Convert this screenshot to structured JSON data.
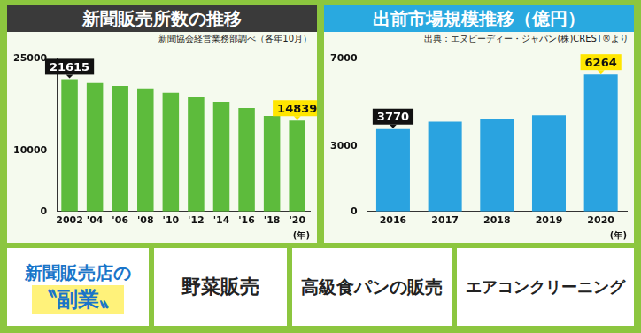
{
  "chart_data": [
    {
      "type": "bar",
      "title": "新聞販売所数の推移",
      "subtitle": "新聞協会経営業務部調べ（各年10月）",
      "categories": [
        "2002",
        "'04",
        "'06",
        "'08",
        "'10",
        "'12",
        "'14",
        "'16",
        "'18",
        "'20"
      ],
      "values": [
        21615,
        21000,
        20500,
        20100,
        19400,
        18700,
        17900,
        16900,
        15600,
        14839
      ],
      "value_labels": [
        "21615",
        null,
        null,
        null,
        null,
        null,
        null,
        null,
        null,
        "14839"
      ],
      "data_labels": true,
      "color": "#5dbb3c",
      "x_label": "(年)",
      "ylim": [
        0,
        25000
      ],
      "yticks": [
        0,
        10000,
        25000
      ],
      "grid": false
    },
    {
      "type": "bar",
      "title": "出前市場規模推移（億円）",
      "subtitle": "出典：エヌピーディー・ジャパン(株)CREST®より",
      "categories": [
        "2016",
        "2017",
        "2018",
        "2019",
        "2020"
      ],
      "values": [
        3770,
        4100,
        4250,
        4400,
        6264
      ],
      "value_labels": [
        "3770",
        null,
        null,
        null,
        "6264"
      ],
      "data_labels": true,
      "color": "#2aa3e0",
      "x_label": "(年)",
      "ylim": [
        0,
        7000
      ],
      "yticks": [
        0,
        3000,
        7000
      ],
      "grid": false
    }
  ],
  "side_jobs": {
    "heading": [
      "新聞販売店の",
      "〝副業〟"
    ],
    "items": [
      "野菜販売",
      "高級食パンの販売",
      "エアコンクリーニング"
    ]
  }
}
